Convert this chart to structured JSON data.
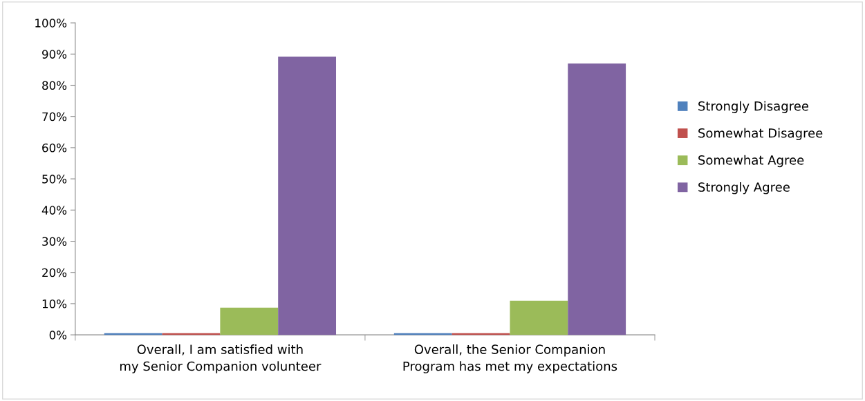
{
  "chart_data": {
    "type": "bar",
    "categories": [
      "Overall, I am satisfied with my Senior Companion volunteer",
      "Overall, the Senior Companion Program has met my expectations"
    ],
    "series": [
      {
        "name": "Strongly Disagree",
        "color": "#4f81bd",
        "values": [
          0.5,
          0.5
        ]
      },
      {
        "name": "Somewhat Disagree",
        "color": "#c0504d",
        "values": [
          0.5,
          0.5
        ]
      },
      {
        "name": "Somewhat Agree",
        "color": "#9bbb59",
        "values": [
          8.7,
          10.9
        ]
      },
      {
        "name": "Strongly Agree",
        "color": "#8064a2",
        "values": [
          89.2,
          87.0
        ]
      }
    ],
    "ylim": [
      0,
      100
    ],
    "yticks": [
      {
        "value": 0,
        "label": "0%"
      },
      {
        "value": 10,
        "label": "10%"
      },
      {
        "value": 20,
        "label": "20%"
      },
      {
        "value": 30,
        "label": "30%"
      },
      {
        "value": 40,
        "label": "40%"
      },
      {
        "value": 50,
        "label": "50%"
      },
      {
        "value": 60,
        "label": "60%"
      },
      {
        "value": 70,
        "label": "70%"
      },
      {
        "value": 80,
        "label": "80%"
      },
      {
        "value": 90,
        "label": "90%"
      },
      {
        "value": 100,
        "label": "100%"
      }
    ],
    "grid": false,
    "legend": "right"
  }
}
